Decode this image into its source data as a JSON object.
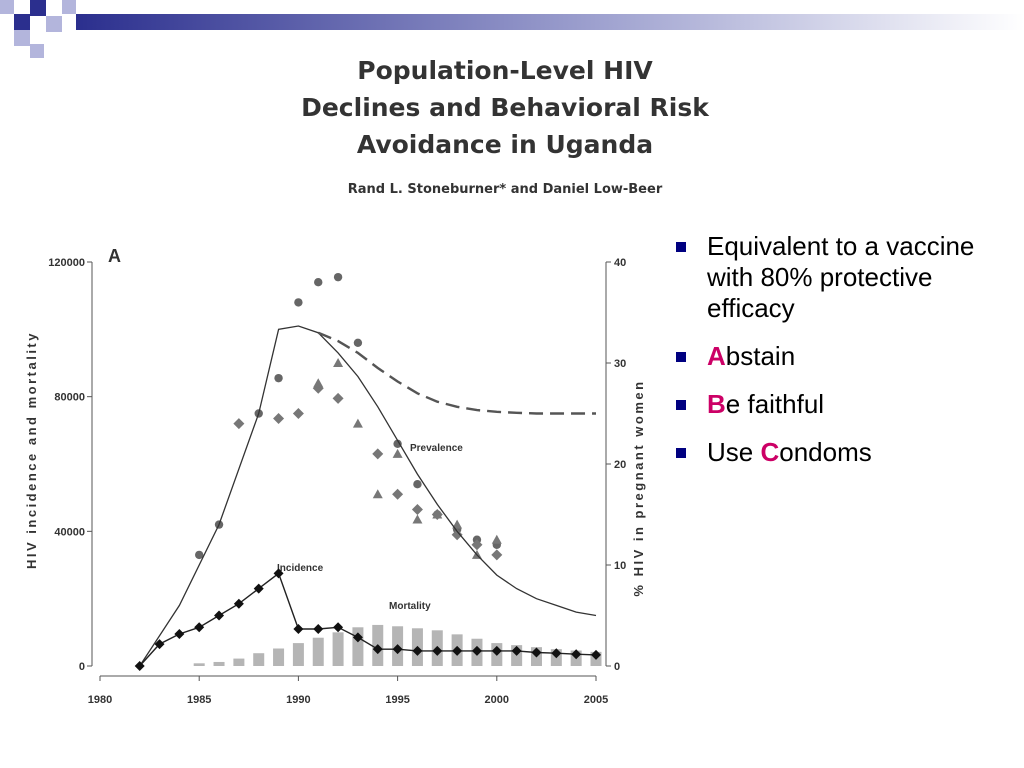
{
  "paper": {
    "title_lines": [
      "Population-Level HIV",
      "Declines and Behavioral Risk",
      "Avoidance in Uganda"
    ],
    "authors": "Rand L. Stoneburner* and Daniel Low-Beer"
  },
  "bullets": {
    "item1": "Equivalent to a vaccine with 80% protective efficacy",
    "item2_first": "A",
    "item2_rest": "bstain",
    "item3_first": "B",
    "item3_rest": "e faithful",
    "item4_prefix": "Use ",
    "item4_first": "C",
    "item4_rest": "ondoms"
  },
  "colors": {
    "accent": "#cc0066",
    "bullet": "#000080",
    "deco_dark": "#2b2f8e",
    "deco_light": "#b3b5dc",
    "bars": "#b5b5b5",
    "series": "#333333"
  },
  "chart_data": {
    "type": "line",
    "panel_label": "A",
    "xlim": [
      1980,
      2005
    ],
    "ylim_left": [
      0,
      120000
    ],
    "ylim_right": [
      0,
      40
    ],
    "x_ticks": [
      1980,
      1985,
      1990,
      1995,
      2000,
      2005
    ],
    "y_ticks_left": [
      0,
      40000,
      80000,
      120000
    ],
    "y_ticks_right": [
      0,
      10,
      20,
      30,
      40
    ],
    "ylabel_left": "HIV incidence and mortality",
    "ylabel_right": "% HIV in pregnant women",
    "annotations": {
      "prevalence": "Prevalence",
      "incidence": "Incidence",
      "mortality": "Mortality"
    },
    "series": [
      {
        "name": "Prevalence",
        "axis": "left",
        "style": "solid",
        "x": [
          1982,
          1984,
          1986,
          1988,
          1989,
          1990,
          1991,
          1992,
          1993,
          1994,
          1995,
          1996,
          1997,
          1998,
          1999,
          2000,
          2001,
          2002,
          2003,
          2004,
          2005
        ],
        "y": [
          0,
          18000,
          42000,
          75000,
          100000,
          101000,
          99000,
          93000,
          86000,
          77000,
          67000,
          57000,
          48000,
          40000,
          33000,
          27000,
          23000,
          20000,
          18000,
          16000,
          15000
        ]
      },
      {
        "axis": "left",
        "style": "dashed",
        "x": [
          1991,
          1992,
          1993,
          1994,
          1995,
          1996,
          1997,
          1998,
          1999,
          2000,
          2001,
          2002,
          2003,
          2004,
          2005
        ],
        "y": [
          99000,
          96500,
          93000,
          88500,
          84500,
          81000,
          78500,
          77000,
          76000,
          75500,
          75200,
          75000,
          75000,
          75000,
          75000
        ]
      },
      {
        "name": "Incidence",
        "axis": "left",
        "style": "solid-diamond",
        "x": [
          1982,
          1983,
          1984,
          1985,
          1986,
          1987,
          1988,
          1989,
          1990,
          1991,
          1992,
          1993,
          1994,
          1995,
          1996,
          1997,
          1998,
          1999,
          2000,
          2001,
          2002,
          2003,
          2004,
          2005
        ],
        "y": [
          0,
          6500,
          9500,
          11500,
          15000,
          18500,
          23000,
          27500,
          11000,
          11000,
          11500,
          8500,
          5000,
          5000,
          4500,
          4500,
          4500,
          4500,
          4500,
          4500,
          4000,
          3800,
          3500,
          3300
        ]
      },
      {
        "name": "Mortality",
        "axis": "left",
        "type": "bar",
        "x": [
          1985,
          1986,
          1987,
          1988,
          1989,
          1990,
          1991,
          1992,
          1993,
          1994,
          1995,
          1996,
          1997,
          1998,
          1999,
          2000,
          2001,
          2002,
          2003,
          2004,
          2005
        ],
        "y": [
          800,
          1200,
          2200,
          3800,
          5200,
          6800,
          8400,
          10000,
          11500,
          12200,
          11800,
          11200,
          10600,
          9400,
          8100,
          6800,
          6200,
          5600,
          5000,
          4600,
          4200
        ]
      },
      {
        "axis": "right",
        "type": "scatter",
        "marker": "circle",
        "x": [
          1985,
          1986,
          1988,
          1989,
          1990,
          1991,
          1992,
          1993,
          1995,
          1996,
          1997,
          1998,
          1999,
          2000
        ],
        "y": [
          11,
          14,
          25,
          28.5,
          36,
          38,
          38.5,
          32,
          22,
          18,
          15,
          13.5,
          12.5,
          12
        ]
      },
      {
        "axis": "right",
        "type": "scatter",
        "marker": "diamond",
        "x": [
          1987,
          1989,
          1990,
          1991,
          1992,
          1994,
          1995,
          1996,
          1997,
          1998,
          1999,
          2000
        ],
        "y": [
          24,
          24.5,
          25,
          27.5,
          26.5,
          21,
          17,
          15.5,
          15,
          13,
          12,
          11
        ]
      },
      {
        "axis": "right",
        "type": "scatter",
        "marker": "triangle",
        "x": [
          1991,
          1992,
          1993,
          1994,
          1995,
          1996,
          1997,
          1998,
          1999,
          2000
        ],
        "y": [
          28,
          30,
          24,
          17,
          21,
          14.5,
          15,
          14,
          11,
          12.5
        ]
      }
    ]
  }
}
